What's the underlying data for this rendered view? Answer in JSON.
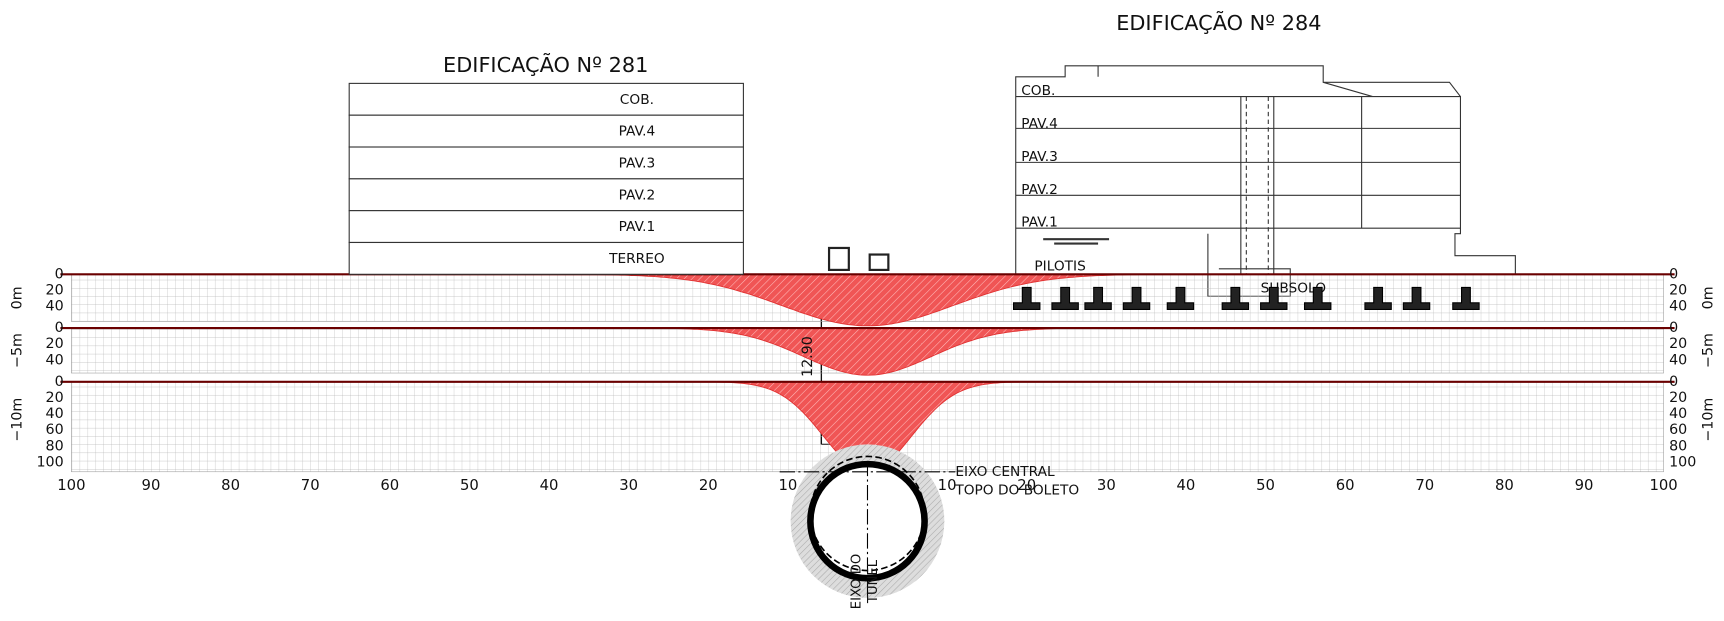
{
  "buildings": [
    {
      "title": "EDIFICAÇÃO Nº 281",
      "floors": [
        "COB.",
        "PAV.4",
        "PAV.3",
        "PAV.2",
        "PAV.1",
        "TERREO"
      ]
    },
    {
      "title": "EDIFICAÇÃO Nº 284",
      "floors": [
        "COB.",
        "PAV.4",
        "PAV.3",
        "PAV.2",
        "PAV.1",
        "PILOTIS",
        "SUBSOLO"
      ]
    }
  ],
  "profiles": [
    {
      "label": "0m",
      "depth_ticks": [
        "0",
        "20",
        "40"
      ]
    },
    {
      "label": "−5m",
      "depth_ticks": [
        "0",
        "20",
        "40"
      ]
    },
    {
      "label": "−10m",
      "depth_ticks": [
        "0",
        "20",
        "40",
        "60",
        "80",
        "100"
      ]
    }
  ],
  "distance_ticks": [
    "100",
    "90",
    "80",
    "70",
    "60",
    "50",
    "40",
    "30",
    "20",
    "10",
    "10",
    "20",
    "30",
    "40",
    "50",
    "60",
    "70",
    "80",
    "90",
    "100"
  ],
  "annotations": {
    "depth": "12.90",
    "center_axis": "EIXO CENTRAL",
    "invert": "TOPO DO BOLETO",
    "tunnel_axis": [
      "EIXO DO",
      "TUNEL"
    ]
  }
}
